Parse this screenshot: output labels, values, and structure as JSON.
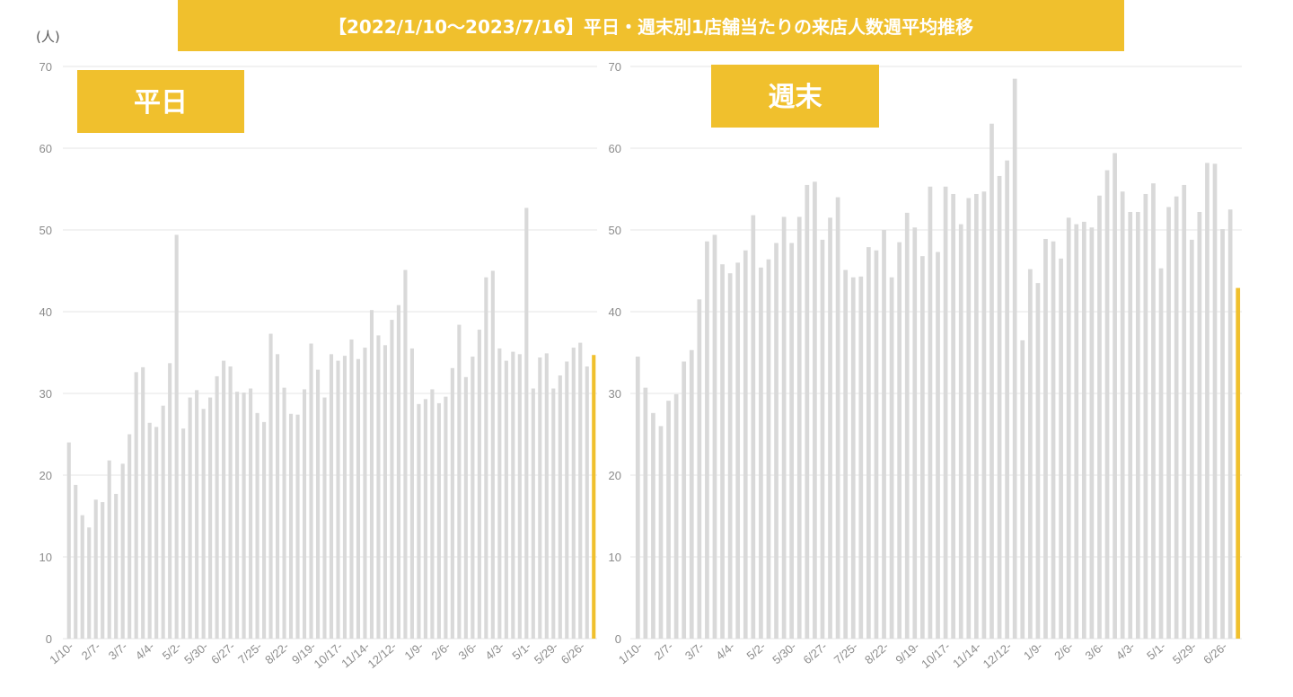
{
  "title": "【2022/1/10～2023/7/16】平日・週末別1店舗当たりの来店人数週平均推移",
  "unit": "(人)",
  "colors": {
    "bar": "#D9D9D9",
    "highlight": "#F0C02D",
    "label_bg": "#F0C02D",
    "grid": "#E6E6E6",
    "axis_text": "#8C8C8C"
  },
  "chart_data": [
    {
      "type": "bar",
      "panel_label": "平日",
      "xlabel": "",
      "ylabel": "",
      "ylim": [
        0,
        70
      ],
      "yticks": [
        0,
        10,
        20,
        30,
        40,
        50,
        60,
        70
      ],
      "grid": true,
      "xtick_labels": [
        "1/10-",
        "2/7-",
        "3/7-",
        "4/4-",
        "5/2-",
        "5/30-",
        "6/27-",
        "7/25-",
        "8/22-",
        "9/19-",
        "10/17-",
        "11/14-",
        "12/12-",
        "1/9-",
        "2/6-",
        "3/6-",
        "4/3-",
        "5/1-",
        "5/29-",
        "6/26-"
      ],
      "xtick_every": 4,
      "highlight_last": true,
      "values": [
        24.0,
        18.8,
        15.1,
        13.6,
        17.0,
        16.7,
        21.8,
        17.7,
        21.4,
        25.0,
        32.6,
        33.2,
        26.4,
        25.9,
        28.5,
        33.7,
        49.4,
        25.7,
        29.5,
        30.4,
        28.1,
        29.5,
        32.1,
        34.0,
        33.3,
        30.2,
        30.1,
        30.6,
        27.6,
        26.5,
        37.3,
        34.8,
        30.7,
        27.5,
        27.4,
        30.5,
        36.1,
        32.9,
        29.5,
        34.8,
        34.0,
        34.6,
        36.6,
        34.2,
        35.6,
        40.2,
        37.1,
        35.9,
        39.0,
        40.8,
        45.1,
        35.5,
        28.7,
        29.3,
        30.5,
        28.8,
        29.6,
        33.1,
        38.4,
        32.0,
        34.5,
        37.8,
        44.2,
        45.0,
        35.5,
        34.0,
        35.1,
        34.8,
        52.7,
        30.6,
        34.4,
        34.9,
        30.6,
        32.2,
        33.9,
        35.6,
        36.2,
        33.3,
        34.7
      ]
    },
    {
      "type": "bar",
      "panel_label": "週末",
      "xlabel": "",
      "ylabel": "",
      "ylim": [
        0,
        70
      ],
      "yticks": [
        0,
        10,
        20,
        30,
        40,
        50,
        60,
        70
      ],
      "grid": true,
      "xtick_labels": [
        "1/10-",
        "2/7-",
        "3/7-",
        "4/4-",
        "5/2-",
        "5/30-",
        "6/27-",
        "7/25-",
        "8/22-",
        "9/19-",
        "10/17-",
        "11/14-",
        "12/12-",
        "1/9-",
        "2/6-",
        "3/6-",
        "4/3-",
        "5/1-",
        "5/29-",
        "6/26-"
      ],
      "xtick_every": 4,
      "highlight_last": true,
      "values": [
        34.5,
        30.7,
        27.6,
        26.0,
        29.1,
        29.9,
        33.9,
        35.3,
        41.5,
        48.6,
        49.4,
        45.8,
        44.7,
        46.0,
        47.5,
        51.8,
        45.4,
        46.4,
        48.4,
        51.6,
        48.4,
        51.6,
        55.5,
        55.9,
        48.8,
        51.5,
        54.0,
        45.1,
        44.2,
        44.3,
        47.9,
        47.5,
        50.0,
        44.2,
        48.5,
        52.1,
        50.3,
        46.8,
        55.3,
        47.3,
        55.3,
        54.4,
        50.7,
        53.9,
        54.4,
        54.7,
        63.0,
        56.6,
        58.5,
        68.5,
        36.5,
        45.2,
        43.5,
        48.9,
        48.6,
        46.5,
        51.5,
        50.7,
        51.0,
        50.3,
        54.2,
        57.3,
        59.4,
        54.7,
        52.2,
        52.2,
        54.4,
        55.7,
        45.3,
        52.8,
        54.1,
        55.5,
        48.8,
        52.2,
        58.2,
        58.1,
        50.1,
        52.5,
        42.9
      ]
    }
  ]
}
